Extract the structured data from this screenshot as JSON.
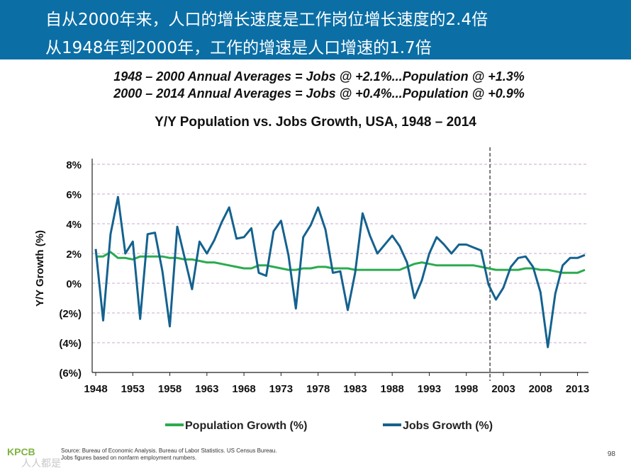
{
  "slide": {
    "headline_1": "自从2000年来，人口的增长速度是工作岗位增长速度的2.4倍",
    "headline_2": "从1948年到2000年，工作的增速是人口增速的1.7倍",
    "average_1": "1948 – 2000 Annual Averages = Jobs @ +2.1%...Population @ +1.3%",
    "average_2": "2000 – 2014 Annual Averages = Jobs @ +0.4%...Population @ +0.9%",
    "logo": "KPCB",
    "watermark": "人人都是",
    "source_1": "Source: Bureau of Economic Analysis. Bureau of Labor Statistics. US Census Bureau.",
    "source_2": "Jobs figures based on nonfarm employment numbers.",
    "page_number": "98"
  },
  "chart_data": {
    "type": "line",
    "title": "Y/Y Population vs. Jobs Growth, USA, 1948 – 2014",
    "ylabel": "Y/Y Growth (%)",
    "xlabel": "",
    "ylim": [
      -6,
      8
    ],
    "xlim": [
      1948,
      2014
    ],
    "y_ticks": [
      8,
      6,
      4,
      2,
      0,
      -2,
      -4,
      -6
    ],
    "y_tick_labels": [
      "8%",
      "6%",
      "4%",
      "2%",
      "0%",
      "(2%)",
      "(4%)",
      "(6%)"
    ],
    "x_ticks": [
      1948,
      1953,
      1958,
      1963,
      1968,
      1973,
      1978,
      1983,
      1988,
      1993,
      1998,
      2003,
      2008,
      2013
    ],
    "x_tick_labels": [
      "1948",
      "1953",
      "1958",
      "1963",
      "1968",
      "1973",
      "1978",
      "1983",
      "1988",
      "1993",
      "1998",
      "2003",
      "2008",
      "2013"
    ],
    "grid": "horizontal dashed",
    "legend_position": "bottom",
    "divider_year": 2001,
    "x": [
      1948,
      1949,
      1950,
      1951,
      1952,
      1953,
      1954,
      1955,
      1956,
      1957,
      1958,
      1959,
      1960,
      1961,
      1962,
      1963,
      1964,
      1965,
      1966,
      1967,
      1968,
      1969,
      1970,
      1971,
      1972,
      1973,
      1974,
      1975,
      1976,
      1977,
      1978,
      1979,
      1980,
      1981,
      1982,
      1983,
      1984,
      1985,
      1986,
      1987,
      1988,
      1989,
      1990,
      1991,
      1992,
      1993,
      1994,
      1995,
      1996,
      1997,
      1998,
      1999,
      2000,
      2001,
      2002,
      2003,
      2004,
      2005,
      2006,
      2007,
      2008,
      2009,
      2010,
      2011,
      2012,
      2013,
      2014
    ],
    "series": [
      {
        "name": "Population Growth (%)",
        "color": "#2bab4f",
        "values": [
          1.8,
          1.8,
          2.1,
          1.7,
          1.7,
          1.6,
          1.8,
          1.8,
          1.8,
          1.8,
          1.7,
          1.7,
          1.6,
          1.6,
          1.5,
          1.4,
          1.4,
          1.3,
          1.2,
          1.1,
          1.0,
          1.0,
          1.2,
          1.2,
          1.1,
          1.0,
          0.9,
          0.9,
          1.0,
          1.0,
          1.1,
          1.1,
          1.0,
          1.0,
          1.0,
          0.9,
          0.9,
          0.9,
          0.9,
          0.9,
          0.9,
          0.9,
          1.1,
          1.3,
          1.4,
          1.3,
          1.2,
          1.2,
          1.2,
          1.2,
          1.2,
          1.2,
          1.1,
          1.0,
          0.9,
          0.9,
          0.9,
          0.9,
          1.0,
          1.0,
          0.9,
          0.9,
          0.8,
          0.7,
          0.7,
          0.7,
          0.9
        ]
      },
      {
        "name": "Jobs Growth (%)",
        "color": "#14628f",
        "values": [
          2.3,
          -2.5,
          3.3,
          5.8,
          2.0,
          2.8,
          -2.4,
          3.3,
          3.4,
          0.8,
          -2.9,
          3.8,
          1.7,
          -0.4,
          2.8,
          2.0,
          2.9,
          4.1,
          5.1,
          3.0,
          3.1,
          3.7,
          0.7,
          0.5,
          3.5,
          4.2,
          1.9,
          -1.7,
          3.1,
          3.9,
          5.1,
          3.6,
          0.7,
          0.8,
          -1.8,
          0.7,
          4.7,
          3.2,
          2.0,
          2.6,
          3.2,
          2.5,
          1.4,
          -1.0,
          0.2,
          2.0,
          3.1,
          2.6,
          2.0,
          2.6,
          2.6,
          2.4,
          2.2,
          -0.1,
          -1.1,
          -0.3,
          1.1,
          1.7,
          1.8,
          1.1,
          -0.6,
          -4.3,
          -0.7,
          1.2,
          1.7,
          1.7,
          1.9
        ]
      }
    ]
  }
}
